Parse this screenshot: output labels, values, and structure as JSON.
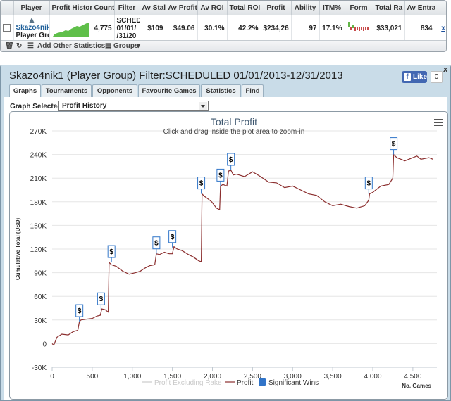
{
  "stats_table": {
    "columns": [
      "",
      "Player",
      "Profit Histor",
      "Count",
      "Filter",
      "Av Stal",
      "Av Profit",
      "Av ROI",
      "Total ROI",
      "Profit",
      "Ability",
      "ITM%",
      "Form",
      "Total Ra",
      "Av Entra",
      ""
    ],
    "row": {
      "player_name": "Skazo4nik",
      "player_sub": "Player Grou",
      "count": "4,775",
      "filter_lines": [
        "SCHEDUL",
        "01/01/",
        "/31/20"
      ],
      "av_stake": "$109",
      "av_profit": "$49.06",
      "av_roi": "30.1%",
      "total_roi": "42.2%",
      "profit": "$234,26",
      "ability": "97",
      "itm": "17.1%",
      "total_rake": "$33,021",
      "av_entrants": "834",
      "remove": "x"
    }
  },
  "toolbar": {
    "add_label": "Add Other Statistics",
    "groups_label": "Groups"
  },
  "window": {
    "title": "Skazo4nik1 (Player Group) Filter:SCHEDULED 01/01/2013-12/31/2013",
    "like_label": "Like",
    "like_count": "0",
    "close": "x",
    "tabs": [
      "Graphs",
      "Tournaments",
      "Opponents",
      "Favourite Games",
      "Statistics",
      "Find"
    ],
    "active_tab": 0,
    "graph_label": "Graph Selected:",
    "graph_value": "Profit History"
  },
  "colors": {
    "profit_line": "#8b2e2e",
    "marker": "#3176c9",
    "sig_wins": "#3174c8",
    "excl_rake": "#cccccc"
  },
  "chart_data": {
    "type": "line",
    "title": "Total Profit",
    "subtitle": "Click and drag inside the plot area to zoom-in",
    "ylabel": "Cumulative Total (USD)",
    "xlabel": "No. Games",
    "ylim": [
      -30000,
      270000
    ],
    "xlim": [
      0,
      4800
    ],
    "x_ticks": [
      0,
      500,
      1000,
      1500,
      2000,
      2500,
      3000,
      3500,
      4000,
      4500
    ],
    "y_ticks": [
      -30000,
      0,
      30000,
      60000,
      90000,
      120000,
      150000,
      180000,
      210000,
      240000,
      270000
    ],
    "x_tick_labels": [
      "0",
      "500",
      "1,000",
      "1,500",
      "2,000",
      "2,500",
      "3,000",
      "3,500",
      "4,000",
      "4,500"
    ],
    "y_tick_labels": [
      "-30K",
      "0",
      "30K",
      "60K",
      "90K",
      "120K",
      "150K",
      "180K",
      "210K",
      "240K",
      "270K"
    ],
    "series": [
      {
        "name": "Profit Excluding Rake",
        "values": []
      },
      {
        "name": "Profit",
        "x": [
          0,
          20,
          60,
          120,
          200,
          260,
          320,
          340,
          360,
          420,
          500,
          560,
          600,
          620,
          660,
          700,
          710,
          740,
          800,
          880,
          960,
          1040,
          1100,
          1160,
          1220,
          1280,
          1300,
          1340,
          1400,
          1460,
          1500,
          1520,
          1560,
          1620,
          1700,
          1760,
          1830,
          1860,
          1870,
          1900,
          1940,
          1990,
          2050,
          2090,
          2100,
          2130,
          2180,
          2200,
          2230,
          2260,
          2300,
          2400,
          2500,
          2600,
          2700,
          2800,
          2900,
          3000,
          3100,
          3200,
          3300,
          3400,
          3500,
          3600,
          3700,
          3800,
          3900,
          3950,
          3960,
          4000,
          4100,
          4200,
          4250,
          4260,
          4300,
          4350,
          4400,
          4500,
          4550,
          4600,
          4700,
          4750
        ],
        "values": [
          0,
          -2000,
          8000,
          12000,
          11000,
          15000,
          17000,
          28000,
          30000,
          31000,
          32000,
          35000,
          36000,
          44000,
          43000,
          40000,
          103000,
          100000,
          98000,
          92000,
          88000,
          90000,
          92000,
          96000,
          99000,
          100000,
          114000,
          113000,
          116000,
          114000,
          114000,
          123000,
          120000,
          118000,
          113000,
          110000,
          105000,
          104000,
          190000,
          187000,
          184000,
          180000,
          172000,
          170000,
          200000,
          202000,
          200000,
          219000,
          220000,
          214000,
          215000,
          212000,
          218000,
          212000,
          205000,
          204000,
          198000,
          200000,
          195000,
          190000,
          188000,
          180000,
          175000,
          177000,
          174000,
          172000,
          175000,
          182000,
          190000,
          192000,
          200000,
          202000,
          210000,
          240000,
          236000,
          234000,
          232000,
          236000,
          238000,
          234000,
          236000,
          234000
        ]
      }
    ],
    "significant_wins": [
      {
        "x": 340,
        "y": 28000
      },
      {
        "x": 610,
        "y": 43000
      },
      {
        "x": 740,
        "y": 103000
      },
      {
        "x": 1300,
        "y": 114000
      },
      {
        "x": 1500,
        "y": 122000
      },
      {
        "x": 1860,
        "y": 190000
      },
      {
        "x": 2100,
        "y": 200000
      },
      {
        "x": 2230,
        "y": 220000
      },
      {
        "x": 3950,
        "y": 190000
      },
      {
        "x": 4260,
        "y": 240000
      }
    ],
    "legend": [
      "Profit Excluding Rake",
      "Profit",
      "Significant Wins"
    ],
    "legend_position": "bottom",
    "marker_label": "$"
  }
}
